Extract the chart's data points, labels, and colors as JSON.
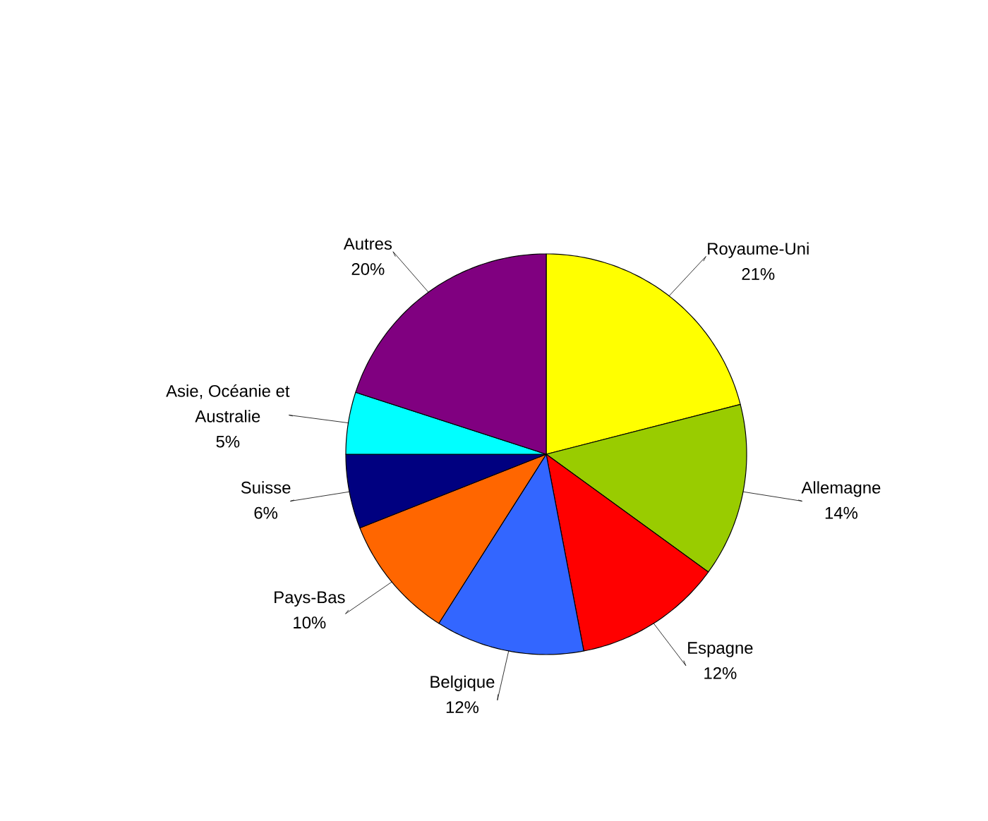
{
  "chart_data": {
    "type": "pie",
    "categories": [
      "Royaume-Uni",
      "Allemagne",
      "Espagne",
      "Belgique",
      "Pays-Bas",
      "Suisse",
      "Asie, Océanie et Australie",
      "Autres"
    ],
    "values": [
      21,
      14,
      12,
      12,
      10,
      6,
      5,
      20
    ],
    "value_labels": [
      "21%",
      "14%",
      "12%",
      "12%",
      "10%",
      "6%",
      "5%",
      "20%"
    ],
    "colors": [
      "#ffff00",
      "#99cc00",
      "#ff0000",
      "#3366ff",
      "#ff6600",
      "#000080",
      "#00ffff",
      "#800080"
    ]
  }
}
